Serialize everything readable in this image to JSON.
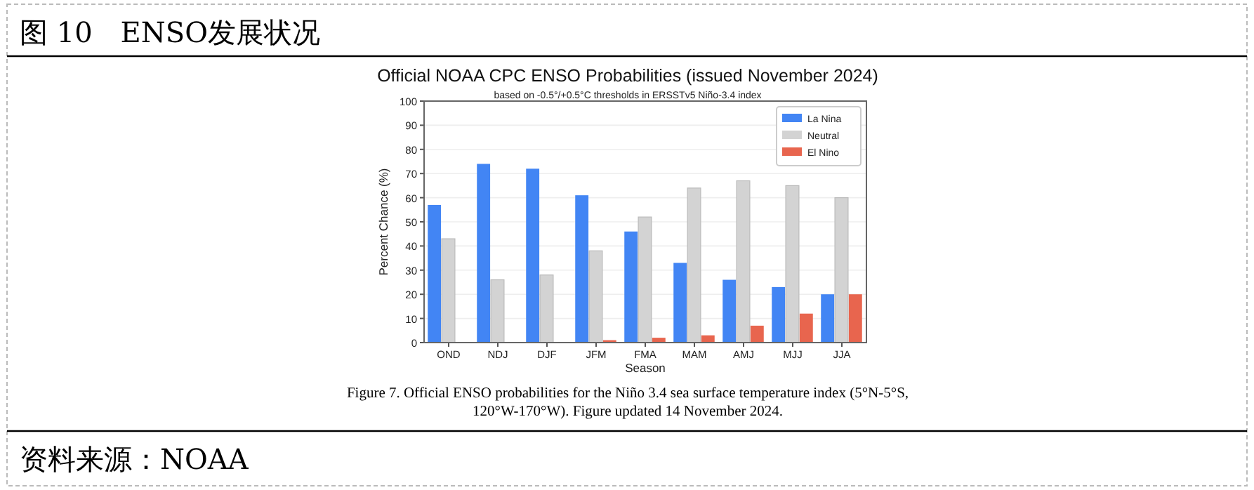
{
  "chart_data": {
    "type": "bar",
    "title": "图 10　ENSO发展状况",
    "subtitle": "Official NOAA CPC ENSO Probabilities (issued November 2024)",
    "annotations": [
      "based on -0.5°/+0.5°C thresholds in ERSSTv5 Niño-3.4 index",
      "Figure 7. Official ENSO probabilities for the Niño 3.4 sea surface temperature index (5°N-5°S, 120°W-170°W). Figure updated 14 November 2024.",
      "资料来源：NOAA"
    ],
    "xlabel": "Season",
    "ylabel": "Percent Chance (%)",
    "categories": [
      "OND",
      "NDJ",
      "DJF",
      "JFM",
      "FMA",
      "MAM",
      "AMJ",
      "MJJ",
      "JJA"
    ],
    "series": [
      {
        "name": "La Nina",
        "color": "#4285f4",
        "values": [
          57,
          74,
          72,
          61,
          46,
          33,
          26,
          23,
          20
        ]
      },
      {
        "name": "Neutral",
        "color": "#d3d3d3",
        "values": [
          43,
          26,
          28,
          38,
          52,
          64,
          67,
          65,
          60
        ]
      },
      {
        "name": "El Nino",
        "color": "#e8654e",
        "values": [
          0,
          0,
          0,
          1,
          2,
          3,
          7,
          12,
          20
        ]
      }
    ],
    "ylim": [
      0,
      100
    ],
    "yticks": [
      0,
      10,
      20,
      30,
      40,
      50,
      60,
      70,
      80,
      90,
      100
    ],
    "grid": "y",
    "legend": "top right"
  }
}
